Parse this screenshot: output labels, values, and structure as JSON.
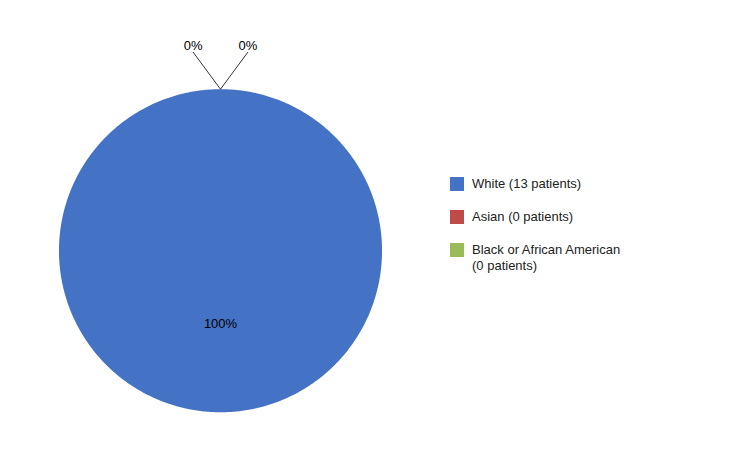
{
  "chart_data": {
    "type": "pie",
    "categories": [
      "White (13 patients)",
      "Asian (0 patients)",
      "Black or African American\n(0 patients)"
    ],
    "values": [
      100,
      0.0001,
      0.0001
    ],
    "value_labels": [
      "100%",
      "0%",
      "0%"
    ],
    "data_labels": true,
    "colors": [
      "#4472C4",
      "#BE4B48",
      "#9BBB59"
    ],
    "legend": "right"
  }
}
